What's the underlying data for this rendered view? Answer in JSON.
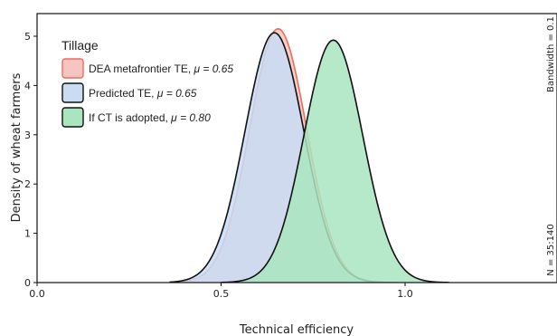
{
  "chart_data": {
    "type": "area",
    "xlabel": "Technical efficiency",
    "ylabel": "Density of wheat farmers",
    "xlim": [
      0,
      1.4
    ],
    "ylim": [
      0,
      5.4
    ],
    "x_ticks": [
      0.0,
      0.5,
      1.0
    ],
    "x_tick_labels": [
      "0.0",
      "0.5",
      "1.0"
    ],
    "y_ticks": [
      0,
      1,
      2,
      3,
      4,
      5
    ],
    "y_tick_labels": [
      "0",
      "1",
      "2",
      "3",
      "4",
      "5"
    ],
    "legend": {
      "title": "Tillage",
      "placement": "top-left",
      "entries": [
        {
          "label": "DEA metafrontier TE,",
          "mu_label": "μ = 0.65"
        },
        {
          "label": "Predicted TE,",
          "mu_label": "μ = 0.65"
        },
        {
          "label": "If CT is adopted,",
          "mu_label": "μ = 0.80"
        }
      ]
    },
    "side_notes": {
      "bandwidth": "Bandwidth = 0.1",
      "n": "N = 35:140"
    },
    "series": [
      {
        "name": "DEA metafrontier TE, μ = 0.65",
        "mean": 0.655,
        "sd": 0.0775,
        "peak": 5.15,
        "support": [
          0.36,
          0.98
        ],
        "fill": "#f6c5c1",
        "stroke": "#ee6b5e"
      },
      {
        "name": "Predicted TE, μ = 0.65",
        "mean": 0.645,
        "sd": 0.08,
        "peak": 5.07,
        "support": [
          0.36,
          0.98
        ],
        "fill": "#c9dcf4",
        "stroke": "#111111"
      },
      {
        "name": "If CT is adopted, μ = 0.80",
        "mean": 0.805,
        "sd": 0.08,
        "peak": 4.92,
        "support": [
          0.5,
          1.12
        ],
        "fill": "#a9e5bf",
        "stroke": "#111111"
      }
    ],
    "grid": false
  }
}
